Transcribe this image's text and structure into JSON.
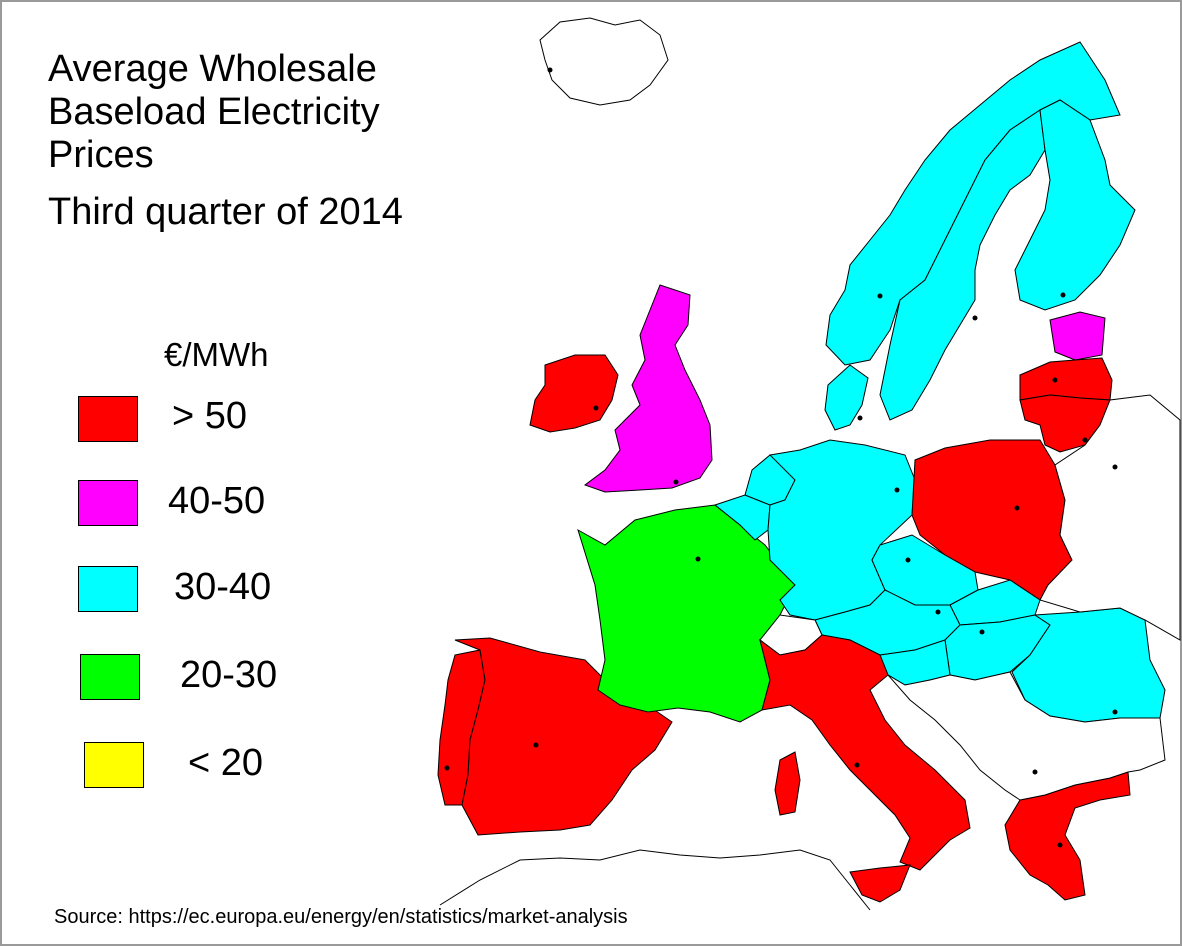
{
  "title": {
    "line1": "Average Wholesale",
    "line2": "Baseload Electricity",
    "line3": "Prices",
    "line4": "Third quarter of 2014"
  },
  "legend": {
    "unit": "€/MWh",
    "items": [
      {
        "label": "> 50",
        "color": "#ff0000"
      },
      {
        "label": "40-50",
        "color": "#ff00ff"
      },
      {
        "label": "30-40",
        "color": "#00ffff"
      },
      {
        "label": "20-30",
        "color": "#00ff00"
      },
      {
        "label": "< 20",
        "color": "#ffff00"
      }
    ]
  },
  "regions": [
    {
      "name": "Ireland",
      "class": "> 50"
    },
    {
      "name": "United Kingdom",
      "class": "40-50"
    },
    {
      "name": "Spain",
      "class": "> 50"
    },
    {
      "name": "Portugal",
      "class": "> 50"
    },
    {
      "name": "France",
      "class": "20-30"
    },
    {
      "name": "Italy",
      "class": "> 50"
    },
    {
      "name": "Greece",
      "class": "> 50"
    },
    {
      "name": "Poland",
      "class": "> 50"
    },
    {
      "name": "Lithuania",
      "class": "> 50"
    },
    {
      "name": "Latvia",
      "class": "> 50"
    },
    {
      "name": "Estonia",
      "class": "40-50"
    },
    {
      "name": "Norway",
      "class": "30-40"
    },
    {
      "name": "Sweden",
      "class": "30-40"
    },
    {
      "name": "Finland",
      "class": "30-40"
    },
    {
      "name": "Denmark",
      "class": "30-40"
    },
    {
      "name": "Germany",
      "class": "30-40"
    },
    {
      "name": "Netherlands",
      "class": "30-40"
    },
    {
      "name": "Belgium",
      "class": "30-40"
    },
    {
      "name": "Czech Republic",
      "class": "30-40"
    },
    {
      "name": "Austria",
      "class": "30-40"
    },
    {
      "name": "Slovakia",
      "class": "30-40"
    },
    {
      "name": "Hungary",
      "class": "30-40"
    },
    {
      "name": "Slovenia",
      "class": "30-40"
    },
    {
      "name": "Romania",
      "class": "30-40"
    }
  ],
  "source": "Source: https://ec.europa.eu/energy/en/statistics/market-analysis"
}
